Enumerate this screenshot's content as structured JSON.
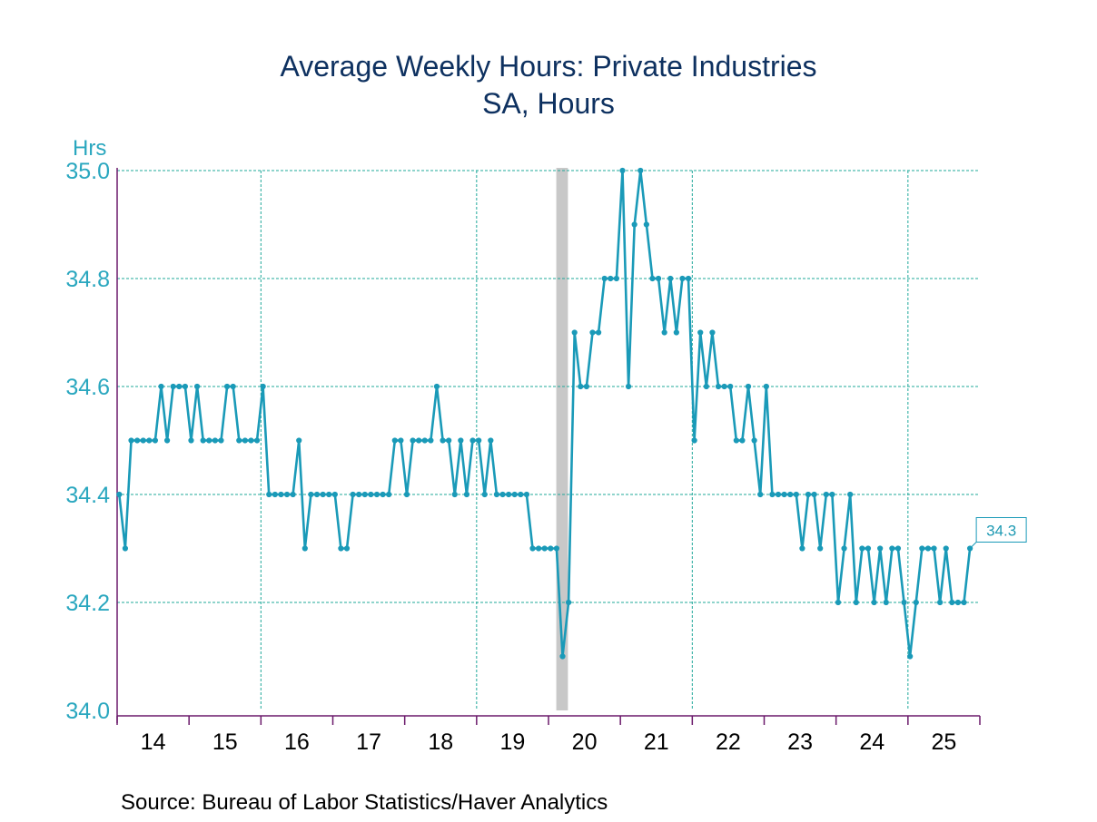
{
  "chart_data": {
    "type": "line",
    "title": "Average Weekly Hours: Private Industries",
    "subtitle": "SA, Hours",
    "ylabel": "Hrs",
    "xlabel": "",
    "ylim": [
      34.0,
      35.0
    ],
    "yticks": [
      "34.0",
      "34.2",
      "34.4",
      "34.6",
      "34.8",
      "35.0"
    ],
    "ytick_values": [
      34.0,
      34.2,
      34.4,
      34.6,
      34.8,
      35.0
    ],
    "xlim": [
      "2014-01",
      "2025-12"
    ],
    "xtick_labels": [
      "14",
      "15",
      "16",
      "17",
      "18",
      "19",
      "20",
      "21",
      "22",
      "23",
      "24",
      "25"
    ],
    "grid": true,
    "frequency": "monthly",
    "start": "2014-01",
    "recession_shading": {
      "start": "2020-02",
      "end": "2020-04"
    },
    "end_label": "34.3",
    "series": [
      {
        "name": "Average Weekly Hours",
        "color": "#1a9ab8",
        "values": [
          34.4,
          34.3,
          34.5,
          34.5,
          34.5,
          34.5,
          34.5,
          34.6,
          34.5,
          34.6,
          34.6,
          34.6,
          34.5,
          34.6,
          34.5,
          34.5,
          34.5,
          34.5,
          34.6,
          34.6,
          34.5,
          34.5,
          34.5,
          34.5,
          34.6,
          34.4,
          34.4,
          34.4,
          34.4,
          34.4,
          34.5,
          34.3,
          34.4,
          34.4,
          34.4,
          34.4,
          34.4,
          34.3,
          34.3,
          34.4,
          34.4,
          34.4,
          34.4,
          34.4,
          34.4,
          34.4,
          34.5,
          34.5,
          34.4,
          34.5,
          34.5,
          34.5,
          34.5,
          34.6,
          34.5,
          34.5,
          34.4,
          34.5,
          34.4,
          34.5,
          34.5,
          34.4,
          34.5,
          34.4,
          34.4,
          34.4,
          34.4,
          34.4,
          34.4,
          34.3,
          34.3,
          34.3,
          34.3,
          34.3,
          34.1,
          34.2,
          34.7,
          34.6,
          34.6,
          34.7,
          34.7,
          34.8,
          34.8,
          34.8,
          35.0,
          34.6,
          34.9,
          35.0,
          34.9,
          34.8,
          34.8,
          34.7,
          34.8,
          34.7,
          34.8,
          34.8,
          34.5,
          34.7,
          34.6,
          34.7,
          34.6,
          34.6,
          34.6,
          34.5,
          34.5,
          34.6,
          34.5,
          34.4,
          34.6,
          34.4,
          34.4,
          34.4,
          34.4,
          34.4,
          34.3,
          34.4,
          34.4,
          34.3,
          34.4,
          34.4,
          34.2,
          34.3,
          34.4,
          34.2,
          34.3,
          34.3,
          34.2,
          34.3,
          34.2,
          34.3,
          34.3,
          34.2,
          34.1,
          34.2,
          34.3,
          34.3,
          34.3,
          34.2,
          34.3,
          34.2,
          34.2,
          34.2,
          34.3
        ]
      }
    ],
    "source": "Source:  Bureau of Labor Statistics/Haver Analytics"
  },
  "colors": {
    "title": "#0e3160",
    "axis": "#6b1a6b",
    "grid": "#1fa89a",
    "line": "#1a9ab8",
    "tick_label": "#2aa7bf",
    "recession": "#c8c8c8"
  }
}
